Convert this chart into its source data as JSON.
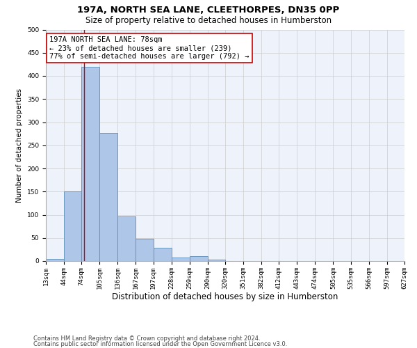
{
  "title1": "197A, NORTH SEA LANE, CLEETHORPES, DN35 0PP",
  "title2": "Size of property relative to detached houses in Humberston",
  "xlabel": "Distribution of detached houses by size in Humberston",
  "ylabel": "Number of detached properties",
  "bin_edges": [
    13,
    44,
    74,
    105,
    136,
    167,
    197,
    228,
    259,
    290,
    320,
    351,
    382,
    412,
    443,
    474,
    505,
    535,
    566,
    597,
    627
  ],
  "bar_heights": [
    5,
    150,
    420,
    277,
    96,
    48,
    28,
    7,
    10,
    3,
    0,
    0,
    0,
    0,
    0,
    0,
    0,
    0,
    0,
    0
  ],
  "bar_color": "#aec6e8",
  "bar_edge_color": "#5b8db8",
  "property_size": 78,
  "vline_color": "#cc0000",
  "annotation_line1": "197A NORTH SEA LANE: 78sqm",
  "annotation_line2": "← 23% of detached houses are smaller (239)",
  "annotation_line3": "77% of semi-detached houses are larger (792) →",
  "annotation_box_color": "#ffffff",
  "annotation_box_edge": "#cc0000",
  "ylim": [
    0,
    500
  ],
  "yticks": [
    0,
    50,
    100,
    150,
    200,
    250,
    300,
    350,
    400,
    450,
    500
  ],
  "grid_color": "#cccccc",
  "bg_color": "#eef2fa",
  "footer1": "Contains HM Land Registry data © Crown copyright and database right 2024.",
  "footer2": "Contains public sector information licensed under the Open Government Licence v3.0.",
  "title1_fontsize": 9.5,
  "title2_fontsize": 8.5,
  "xlabel_fontsize": 8.5,
  "ylabel_fontsize": 7.5,
  "tick_fontsize": 6.5,
  "annotation_fontsize": 7.5,
  "footer_fontsize": 6.0
}
